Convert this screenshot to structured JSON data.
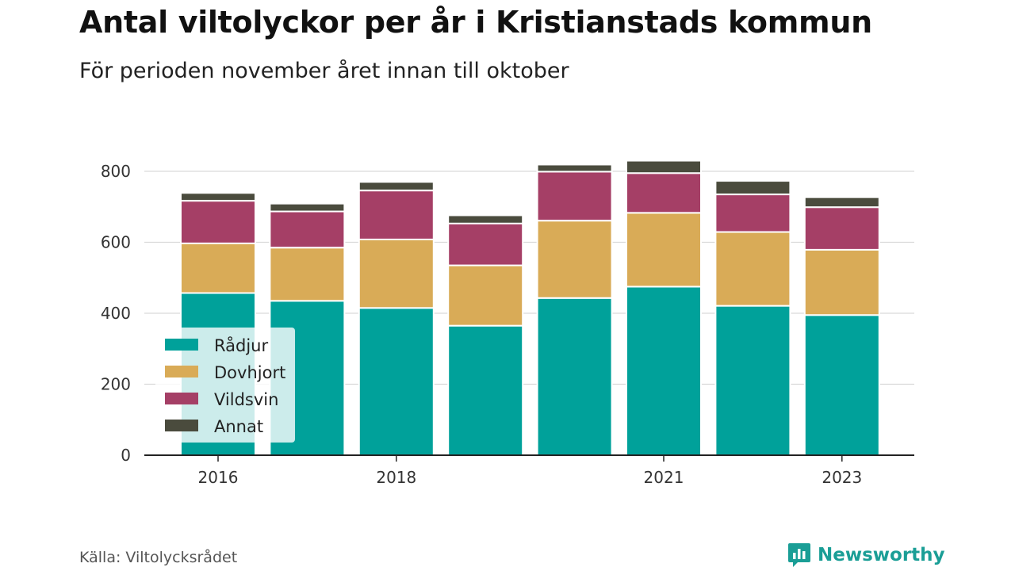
{
  "header": {
    "title": "Antal viltolyckor per år i Kristianstads kommun",
    "subtitle": "För perioden november året innan till oktober"
  },
  "footer": {
    "source": "Källa: Viltolycksrådet",
    "brand": "Newsworthy",
    "brand_icon": "newsworthy-logo-icon",
    "brand_color": "#1a9e96"
  },
  "chart_data": {
    "type": "bar",
    "stacked": true,
    "categories": [
      "2016",
      "2017",
      "2018",
      "2019",
      "2020",
      "2021",
      "2022",
      "2023"
    ],
    "x_tick_labels": [
      "2016",
      "",
      "2018",
      "",
      "",
      "2021",
      "",
      "2023"
    ],
    "series": [
      {
        "name": "Rådjur",
        "color": "#00a19a",
        "values": [
          457,
          435,
          415,
          365,
          443,
          475,
          421,
          395
        ]
      },
      {
        "name": "Dovhjort",
        "color": "#d9ab57",
        "values": [
          140,
          150,
          193,
          170,
          218,
          208,
          208,
          184
        ]
      },
      {
        "name": "Vildsvin",
        "color": "#a53f66",
        "values": [
          120,
          102,
          138,
          118,
          138,
          112,
          106,
          120
        ]
      },
      {
        "name": "Annat",
        "color": "#4a4b3d",
        "values": [
          22,
          22,
          24,
          23,
          20,
          35,
          38,
          28
        ]
      }
    ],
    "xlabel": "",
    "ylabel": "",
    "ylim": [
      0,
      800
    ],
    "yticks": [
      0,
      200,
      400,
      600,
      800
    ],
    "grid": true,
    "legend": "bottom-left"
  }
}
